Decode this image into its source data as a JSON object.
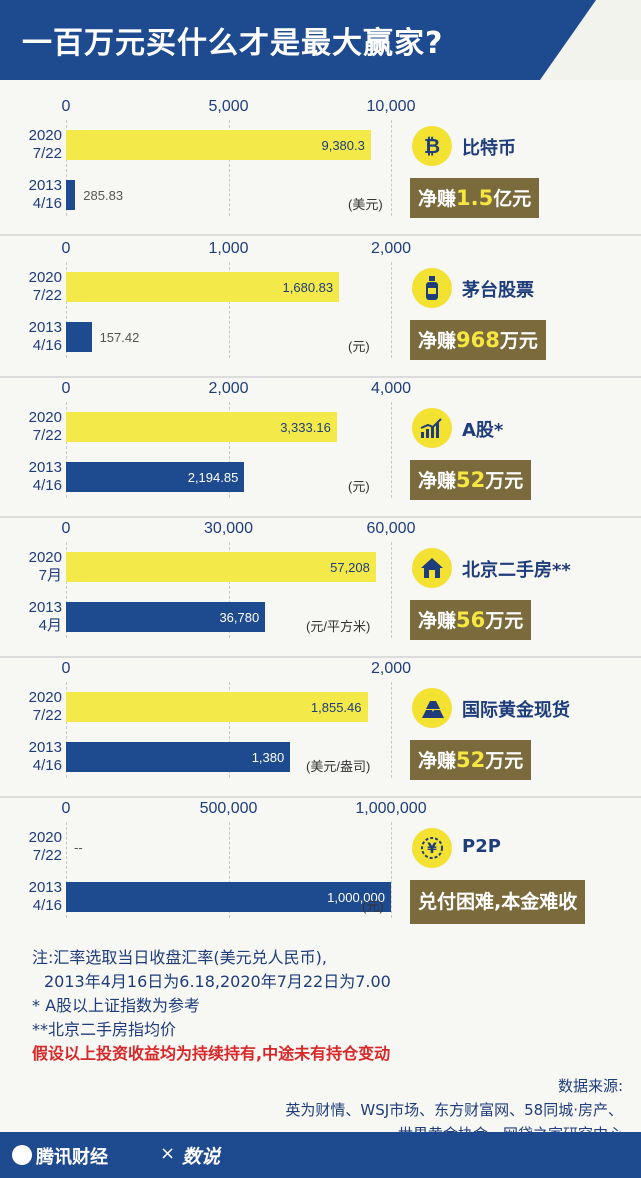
{
  "title": "一百万元买什么才是最大赢家?",
  "chart_data": [
    {
      "type": "bar",
      "asset": "比特币",
      "ticks": [
        "0",
        "5,000",
        "10,000"
      ],
      "xlim": [
        0,
        10000
      ],
      "rows": [
        {
          "date_year": "2020",
          "date_day": "7/22",
          "value": 9380.3,
          "label": "9,380.3",
          "color": "yellow"
        },
        {
          "date_year": "2013",
          "date_day": "4/16",
          "value": 285.83,
          "label": "285.83",
          "color": "blue"
        }
      ],
      "unit": "(美元)",
      "icon": "bitcoin-icon",
      "gain_prefix": "净赚",
      "gain_number": "1.5",
      "gain_suffix": "亿元"
    },
    {
      "type": "bar",
      "asset": "茅台股票",
      "ticks": [
        "0",
        "1,000",
        "2,000"
      ],
      "xlim": [
        0,
        2000
      ],
      "rows": [
        {
          "date_year": "2020",
          "date_day": "7/22",
          "value": 1680.83,
          "label": "1,680.83",
          "color": "yellow"
        },
        {
          "date_year": "2013",
          "date_day": "4/16",
          "value": 157.42,
          "label": "157.42",
          "color": "blue"
        }
      ],
      "unit": "(元)",
      "icon": "bottle-icon",
      "gain_prefix": "净赚",
      "gain_number": "968",
      "gain_suffix": "万元"
    },
    {
      "type": "bar",
      "asset": "A股*",
      "ticks": [
        "0",
        "2,000",
        "4,000"
      ],
      "xlim": [
        0,
        4000
      ],
      "rows": [
        {
          "date_year": "2020",
          "date_day": "7/22",
          "value": 3333.16,
          "label": "3,333.16",
          "color": "yellow"
        },
        {
          "date_year": "2013",
          "date_day": "4/16",
          "value": 2194.85,
          "label": "2,194.85",
          "color": "blue"
        }
      ],
      "unit": "(元)",
      "icon": "stock-chart-icon",
      "gain_prefix": "净赚",
      "gain_number": "52",
      "gain_suffix": "万元"
    },
    {
      "type": "bar",
      "asset": "北京二手房**",
      "ticks": [
        "0",
        "30,000",
        "60,000"
      ],
      "xlim": [
        0,
        60000
      ],
      "rows": [
        {
          "date_year": "2020",
          "date_day": "7月",
          "value": 57208,
          "label": "57,208",
          "color": "yellow"
        },
        {
          "date_year": "2013",
          "date_day": "4月",
          "value": 36780,
          "label": "36,780",
          "color": "blue"
        }
      ],
      "unit": "(元/平方米)",
      "icon": "house-icon",
      "gain_prefix": "净赚",
      "gain_number": "56",
      "gain_suffix": "万元"
    },
    {
      "type": "bar",
      "asset": "国际黄金现货",
      "ticks": [
        "0",
        "",
        "2,000"
      ],
      "xlim": [
        0,
        2000
      ],
      "rows": [
        {
          "date_year": "2020",
          "date_day": "7/22",
          "value": 1855.46,
          "label": "1,855.46",
          "color": "yellow"
        },
        {
          "date_year": "2013",
          "date_day": "4/16",
          "value": 1380,
          "label": "1,380",
          "color": "blue"
        }
      ],
      "unit": "(美元/盎司)",
      "icon": "gold-bars-icon",
      "gain_prefix": "净赚",
      "gain_number": "52",
      "gain_suffix": "万元"
    },
    {
      "type": "bar",
      "asset": "P2P",
      "ticks": [
        "0",
        "500,000",
        "1,000,000"
      ],
      "xlim": [
        0,
        1000000
      ],
      "rows": [
        {
          "date_year": "2020",
          "date_day": "7/22",
          "value": 0,
          "label": "--",
          "color": "yellow"
        },
        {
          "date_year": "2013",
          "date_day": "4/16",
          "value": 1000000,
          "label": "1,000,000",
          "color": "blue"
        }
      ],
      "unit": "(元)",
      "icon": "yen-coin-icon",
      "gain_prefix": "兑付困难,本金难收",
      "gain_number": "",
      "gain_suffix": ""
    }
  ],
  "notes": {
    "line1": "注:汇率选取当日收盘汇率(美元兑人民币),",
    "line2": "2013年4月16日为6.18,2020年7月22日为7.00",
    "line3": "* A股以上证指数为参考",
    "line4": "**北京二手房指均价",
    "red_line": "假设以上投资收益均为持续持有,中途未有持仓变动"
  },
  "source": {
    "label": "数据来源:",
    "line1": "英为财情、WSJ市场、东方财富网、58同城·房产、",
    "line2": "世界黄金协会、网贷之家研究中心"
  },
  "footer": {
    "brand": "腾讯财经",
    "times": "×",
    "brand2": "数说"
  },
  "colors": {
    "navy": "#1e4a8f",
    "yellow": "#f3ea4a",
    "gold_box": "#7a6a3c",
    "highlight": "#f6e642",
    "red": "#d62828"
  }
}
